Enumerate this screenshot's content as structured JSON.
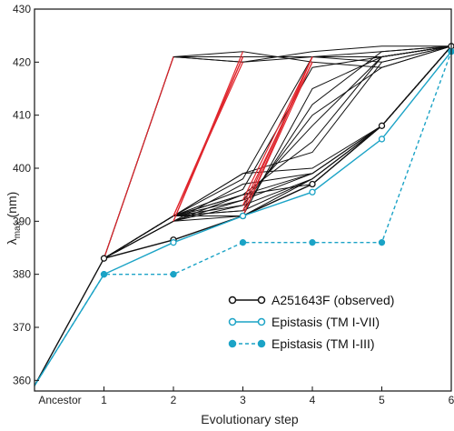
{
  "chart_data": {
    "type": "line",
    "title": "",
    "xlabel": "Evolutionary step",
    "ylabel_main": "λ",
    "ylabel_sub": "max",
    "ylabel_unit": " (nm)",
    "x_tick_labels": [
      "Ancestor",
      "1",
      "2",
      "3",
      "4",
      "5",
      "6"
    ],
    "xlim": [
      0,
      6
    ],
    "ylim": [
      358,
      430
    ],
    "y_ticks": [
      360,
      370,
      380,
      390,
      400,
      410,
      420,
      430
    ],
    "grid": false,
    "legend_position": "bottom-right",
    "colors": {
      "observed": "#111111",
      "tm_vii": "#1ba3c6",
      "tm_iii": "#1ba3c6",
      "paths_black": "#111111",
      "paths_red": "#e0262d"
    },
    "series": [
      {
        "name": "A251643F (observed)",
        "marker": "open-circle",
        "line": "solid",
        "x": [
          0,
          1,
          2,
          3,
          4,
          5,
          6
        ],
        "values": [
          359,
          383,
          386.5,
          391,
          397,
          408,
          423
        ]
      },
      {
        "name": "Epistasis (TM I-VII)",
        "marker": "open-circle",
        "line": "solid",
        "x": [
          0,
          1,
          2,
          3,
          4,
          5,
          6
        ],
        "values": [
          359,
          380,
          386,
          391,
          395.5,
          405.5,
          422
        ]
      },
      {
        "name": "Epistasis (TM I-III)",
        "marker": "filled-circle",
        "line": "dashed",
        "x": [
          0,
          1,
          2,
          3,
          4,
          5,
          6
        ],
        "values": [
          359,
          380,
          380,
          386,
          386,
          386,
          422
        ]
      }
    ],
    "paths_black": [
      [
        [
          1,
          383
        ],
        [
          2,
          421
        ],
        [
          3,
          421
        ],
        [
          4,
          421
        ],
        [
          5,
          421
        ],
        [
          6,
          423
        ]
      ],
      [
        [
          1,
          383
        ],
        [
          2,
          421
        ],
        [
          3,
          420
        ],
        [
          4,
          421
        ],
        [
          5,
          422
        ],
        [
          6,
          423
        ]
      ],
      [
        [
          1,
          383
        ],
        [
          2,
          421
        ],
        [
          3,
          422
        ],
        [
          4,
          420
        ],
        [
          5,
          419
        ],
        [
          6,
          423
        ]
      ],
      [
        [
          1,
          383
        ],
        [
          2,
          421
        ],
        [
          3,
          420
        ],
        [
          4,
          422
        ],
        [
          5,
          423
        ],
        [
          6,
          423
        ]
      ],
      [
        [
          1,
          383
        ],
        [
          2,
          391
        ],
        [
          3,
          391
        ],
        [
          4,
          397
        ],
        [
          5,
          408
        ],
        [
          6,
          423
        ]
      ],
      [
        [
          1,
          383
        ],
        [
          2,
          391
        ],
        [
          3,
          392
        ],
        [
          4,
          398
        ],
        [
          5,
          408
        ],
        [
          6,
          423
        ]
      ],
      [
        [
          1,
          383
        ],
        [
          2,
          390
        ],
        [
          3,
          393
        ],
        [
          4,
          398
        ],
        [
          5,
          408
        ],
        [
          6,
          423
        ]
      ],
      [
        [
          1,
          383
        ],
        [
          2,
          390
        ],
        [
          3,
          394
        ],
        [
          4,
          399
        ],
        [
          5,
          408
        ],
        [
          6,
          423
        ]
      ],
      [
        [
          1,
          383
        ],
        [
          2,
          391
        ],
        [
          3,
          395
        ],
        [
          4,
          397
        ],
        [
          5,
          408
        ],
        [
          6,
          423
        ]
      ],
      [
        [
          1,
          383
        ],
        [
          2,
          390
        ],
        [
          3,
          397
        ],
        [
          4,
          399
        ],
        [
          5,
          408
        ],
        [
          6,
          423
        ]
      ],
      [
        [
          1,
          383
        ],
        [
          2,
          391
        ],
        [
          3,
          399
        ],
        [
          4,
          400
        ],
        [
          5,
          408
        ],
        [
          6,
          423
        ]
      ],
      [
        [
          1,
          383
        ],
        [
          2,
          391
        ],
        [
          3,
          399
        ],
        [
          4,
          403
        ],
        [
          5,
          420
        ],
        [
          6,
          423
        ]
      ],
      [
        [
          1,
          383
        ],
        [
          2,
          391
        ],
        [
          3,
          395
        ],
        [
          4,
          405
        ],
        [
          5,
          421
        ],
        [
          6,
          423
        ]
      ],
      [
        [
          1,
          383
        ],
        [
          2,
          391
        ],
        [
          3,
          394
        ],
        [
          4,
          408
        ],
        [
          5,
          421
        ],
        [
          6,
          423
        ]
      ],
      [
        [
          1,
          383
        ],
        [
          2,
          391
        ],
        [
          3,
          393
        ],
        [
          4,
          410
        ],
        [
          5,
          419
        ],
        [
          6,
          423
        ]
      ],
      [
        [
          1,
          383
        ],
        [
          2,
          391
        ],
        [
          3,
          392
        ],
        [
          4,
          412
        ],
        [
          5,
          422
        ],
        [
          6,
          423
        ]
      ],
      [
        [
          1,
          383
        ],
        [
          2,
          390
        ],
        [
          3,
          391
        ],
        [
          4,
          415
        ],
        [
          5,
          421
        ],
        [
          6,
          423
        ]
      ],
      [
        [
          1,
          383
        ],
        [
          2,
          391
        ],
        [
          3,
          396
        ],
        [
          4,
          419
        ],
        [
          5,
          421
        ],
        [
          6,
          423
        ]
      ],
      [
        [
          1,
          383
        ],
        [
          2,
          391
        ],
        [
          3,
          398
        ],
        [
          4,
          421
        ],
        [
          5,
          420
        ],
        [
          6,
          423
        ]
      ],
      [
        [
          1,
          383
        ],
        [
          2,
          390
        ],
        [
          3,
          395
        ],
        [
          4,
          399
        ],
        [
          5,
          408
        ],
        [
          6,
          423
        ]
      ],
      [
        [
          1,
          383
        ],
        [
          2,
          391
        ],
        [
          3,
          391
        ],
        [
          4,
          398
        ],
        [
          5,
          408
        ],
        [
          6,
          423
        ]
      ]
    ],
    "paths_red": [
      [
        [
          1,
          383
        ],
        [
          2,
          421
        ]
      ],
      [
        [
          2,
          390
        ],
        [
          3,
          421
        ]
      ],
      [
        [
          2,
          391
        ],
        [
          3,
          421
        ]
      ],
      [
        [
          2,
          390
        ],
        [
          3,
          422
        ]
      ],
      [
        [
          2,
          391
        ],
        [
          3,
          420
        ]
      ],
      [
        [
          3,
          391
        ],
        [
          4,
          420
        ]
      ],
      [
        [
          3,
          392
        ],
        [
          4,
          421
        ]
      ],
      [
        [
          3,
          393
        ],
        [
          4,
          420
        ]
      ],
      [
        [
          3,
          394
        ],
        [
          4,
          421
        ]
      ],
      [
        [
          3,
          391
        ],
        [
          4,
          421
        ]
      ]
    ]
  }
}
